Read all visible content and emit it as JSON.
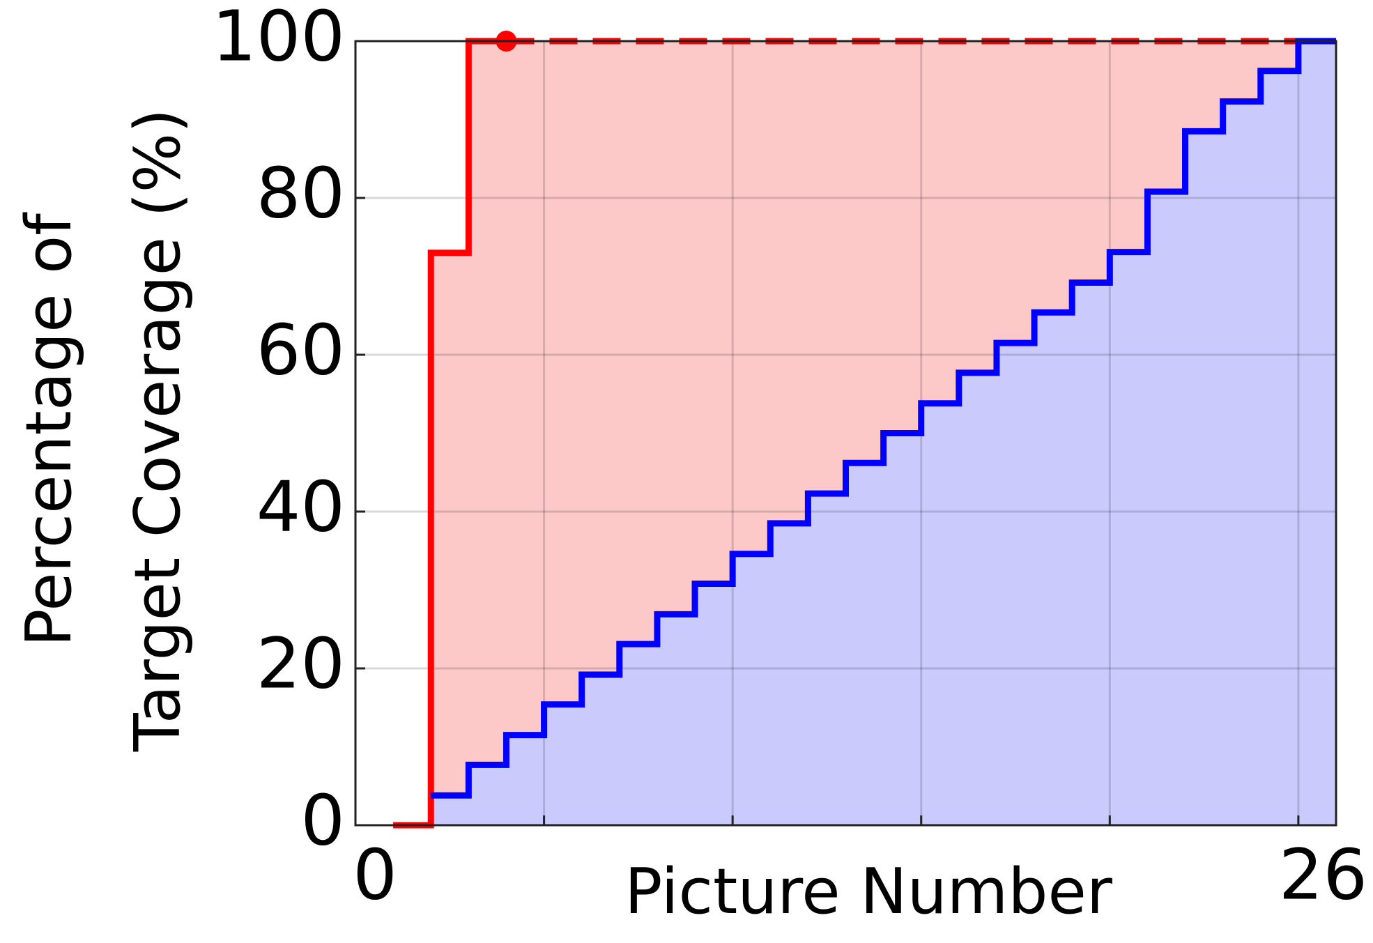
{
  "chart_data": {
    "type": "step",
    "xlabel": "Picture Number",
    "ylabel": [
      "Percentage of",
      "Target Coverage (%)"
    ],
    "xlim": [
      0,
      26
    ],
    "xticks": [
      0,
      26
    ],
    "xgrid": [
      5,
      10,
      15,
      20,
      25
    ],
    "ylim": [
      0,
      100
    ],
    "yticks": [
      0,
      20,
      40,
      60,
      80,
      100
    ],
    "grid": true,
    "series": [
      {
        "color": "#ff0000",
        "fill": "#fcc8c8",
        "dash_after_last": true,
        "marker_last": true,
        "x": [
          1,
          2,
          3,
          4
        ],
        "values": [
          0,
          73,
          100,
          100
        ]
      },
      {
        "color": "#0000ff",
        "fill": "#cacafc",
        "x": [
          2,
          3,
          4,
          5,
          6,
          7,
          8,
          9,
          10,
          11,
          12,
          13,
          14,
          15,
          16,
          17,
          18,
          19,
          20,
          21,
          22,
          23,
          24,
          25,
          26
        ],
        "values": [
          3.8,
          7.7,
          11.5,
          15.4,
          19.2,
          23.1,
          26.9,
          30.8,
          34.6,
          38.5,
          42.3,
          46.2,
          50,
          53.8,
          57.7,
          61.5,
          65.4,
          69.2,
          73.1,
          80.8,
          88.5,
          92.3,
          96.2,
          100,
          100
        ]
      }
    ]
  }
}
